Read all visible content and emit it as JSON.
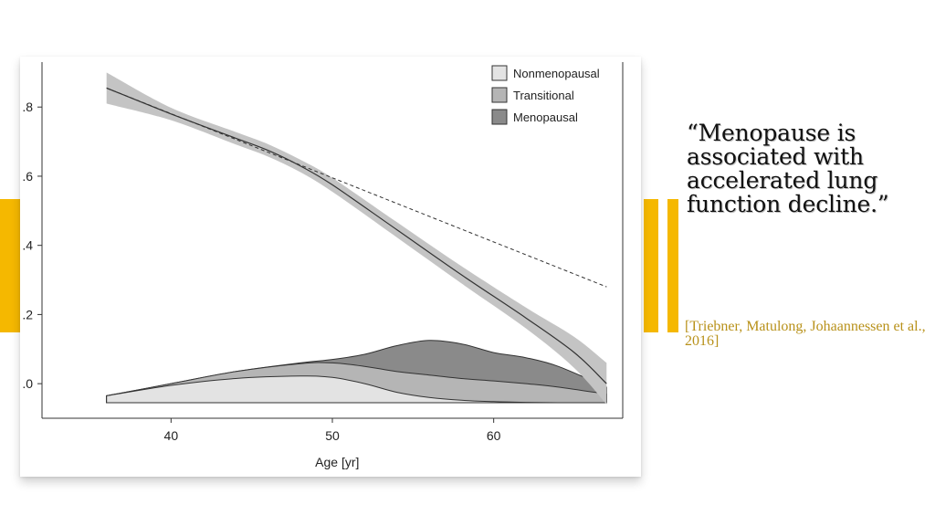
{
  "colors": {
    "accent": "#f5b800",
    "citation": "#b8911a",
    "nonmenopausal": "#e3e3e3",
    "transitional": "#b5b5b5",
    "menopausal": "#8a8a8a",
    "confidence_band": "#c4c4c4"
  },
  "quote": {
    "text": "“Menopause is associated with accelerated lung function decline.”"
  },
  "citation": {
    "text": "[Triebner, Matulong, Johaannessen et al., 2016]"
  },
  "chart_data": {
    "type": "line",
    "xlabel": "Age [yr]",
    "ylabel": "",
    "xlim": [
      32,
      68
    ],
    "ylim": [
      -0.1,
      0.93
    ],
    "x_ticks": [
      {
        "value": 40,
        "label": "40"
      },
      {
        "value": 50,
        "label": "50"
      },
      {
        "value": 60,
        "label": "60"
      }
    ],
    "y_ticks": [
      {
        "value": 0.0,
        "label": ".0"
      },
      {
        "value": 0.2,
        "label": ".2"
      },
      {
        "value": 0.4,
        "label": ".4"
      },
      {
        "value": 0.6,
        "label": ".6"
      },
      {
        "value": 0.8,
        "label": ".8"
      }
    ],
    "legend_position": "top-right",
    "legend": [
      "Nonmenopausal",
      "Transitional",
      "Menopausal"
    ],
    "fitted_curve": {
      "x": [
        36,
        40,
        44,
        46,
        48,
        50,
        54,
        58,
        62,
        65,
        67
      ],
      "y": [
        0.855,
        0.78,
        0.71,
        0.675,
        0.63,
        0.575,
        0.445,
        0.315,
        0.19,
        0.09,
        0.0
      ],
      "band_halfwidth": [
        0.045,
        0.018,
        0.018,
        0.018,
        0.018,
        0.02,
        0.022,
        0.025,
        0.03,
        0.045,
        0.06
      ]
    },
    "reference_line": {
      "x": [
        36,
        67
      ],
      "y": [
        0.855,
        0.28
      ]
    },
    "distributions": {
      "baseline": -0.055,
      "x": [
        36,
        40,
        44,
        48,
        50,
        52,
        54,
        56,
        58,
        60,
        62,
        64,
        67
      ],
      "series": [
        {
          "name": "Nonmenopausal",
          "top": [
            -0.035,
            -0.005,
            0.015,
            0.022,
            0.018,
            0.0,
            -0.025,
            -0.04,
            -0.048,
            -0.052,
            -0.054,
            -0.055,
            -0.055
          ]
        },
        {
          "name": "Transitional",
          "top": [
            -0.035,
            0.0,
            0.035,
            0.058,
            0.06,
            0.05,
            0.035,
            0.025,
            0.015,
            0.008,
            0.0,
            -0.01,
            -0.03
          ]
        },
        {
          "name": "Menopausal",
          "top": [
            -0.035,
            0.0,
            0.035,
            0.06,
            0.07,
            0.085,
            0.11,
            0.125,
            0.115,
            0.09,
            0.075,
            0.05,
            -0.01
          ]
        }
      ]
    }
  }
}
